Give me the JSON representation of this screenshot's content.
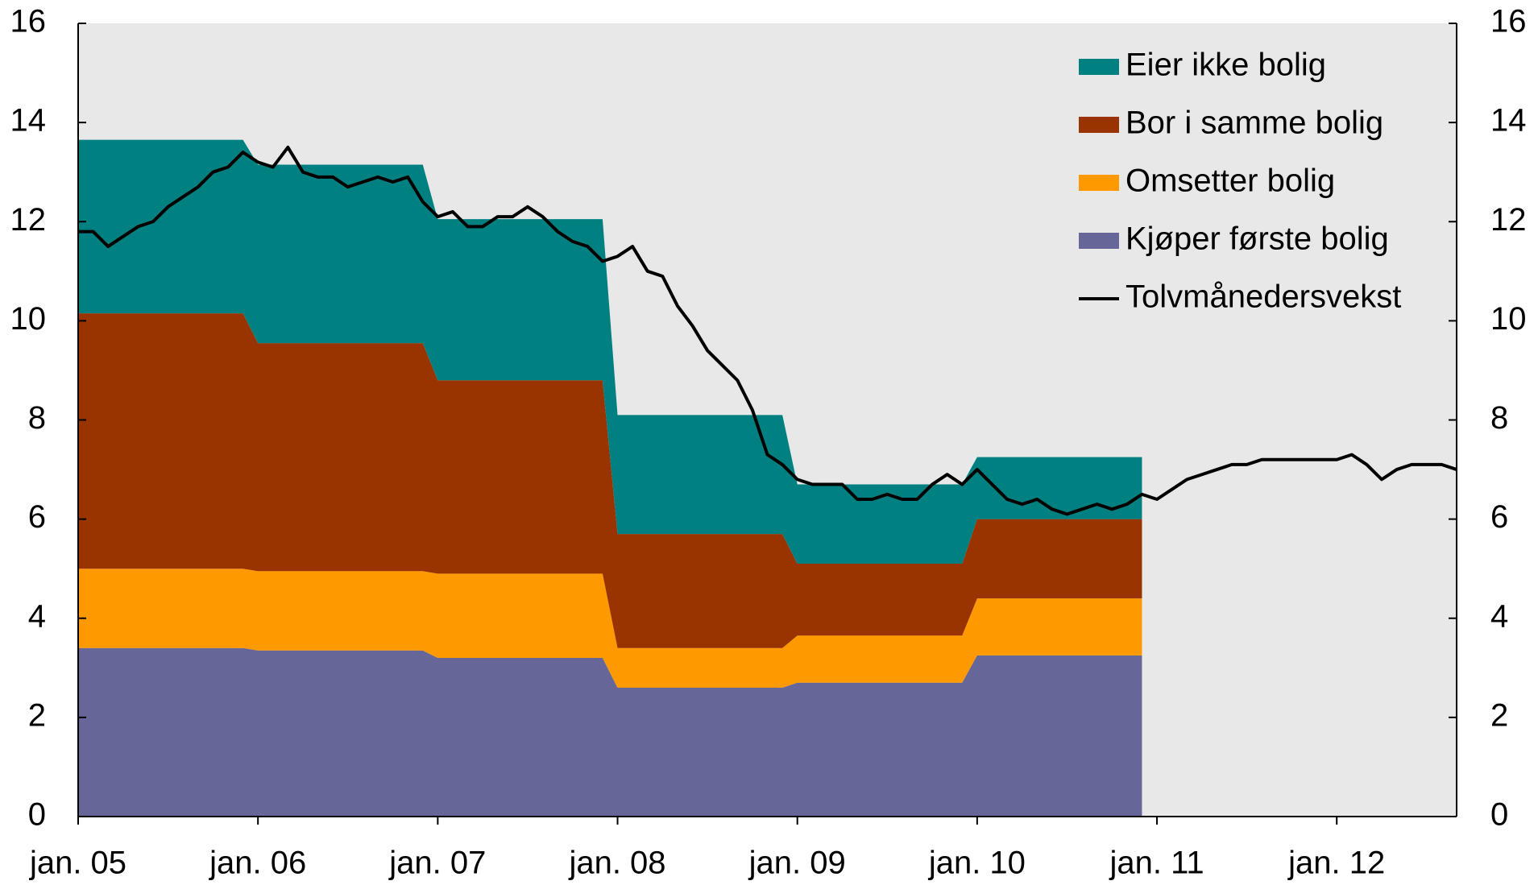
{
  "chart_data": {
    "type": "area",
    "categories": [
      "jan. 05",
      null,
      null,
      null,
      null,
      null,
      null,
      null,
      null,
      null,
      null,
      null,
      "jan. 06",
      null,
      null,
      null,
      null,
      null,
      null,
      null,
      null,
      null,
      null,
      null,
      "jan. 07",
      null,
      null,
      null,
      null,
      null,
      null,
      null,
      null,
      null,
      null,
      null,
      "jan. 08",
      null,
      null,
      null,
      null,
      null,
      null,
      null,
      null,
      null,
      null,
      null,
      "jan. 09",
      null,
      null,
      null,
      null,
      null,
      null,
      null,
      null,
      null,
      null,
      null,
      "jan. 10",
      null,
      null,
      null,
      null,
      null,
      null,
      null,
      null,
      null,
      null,
      null,
      "jan. 11",
      null,
      null,
      null,
      null,
      null,
      null,
      null,
      null,
      null,
      null,
      null,
      "jan. 12",
      null,
      null,
      null,
      null,
      null,
      null,
      null,
      null
    ],
    "series": [
      {
        "name": "Kjøper første bolig",
        "color": "#666699",
        "type": "area",
        "values": [
          3.4,
          3.4,
          3.4,
          3.4,
          3.4,
          3.4,
          3.4,
          3.4,
          3.4,
          3.4,
          3.4,
          3.4,
          3.35,
          3.35,
          3.35,
          3.35,
          3.35,
          3.35,
          3.35,
          3.35,
          3.35,
          3.35,
          3.35,
          3.35,
          3.2,
          3.2,
          3.2,
          3.2,
          3.2,
          3.2,
          3.2,
          3.2,
          3.2,
          3.2,
          3.2,
          3.2,
          2.6,
          2.6,
          2.6,
          2.6,
          2.6,
          2.6,
          2.6,
          2.6,
          2.6,
          2.6,
          2.6,
          2.6,
          2.7,
          2.7,
          2.7,
          2.7,
          2.7,
          2.7,
          2.7,
          2.7,
          2.7,
          2.7,
          2.7,
          2.7,
          3.25,
          3.25,
          3.25,
          3.25,
          3.25,
          3.25,
          3.25,
          3.25,
          3.25,
          3.25,
          3.25,
          3.25,
          null,
          null,
          null,
          null,
          null,
          null,
          null,
          null,
          null,
          null,
          null,
          null,
          null,
          null,
          null,
          null,
          null,
          null,
          null,
          null,
          null
        ]
      },
      {
        "name": "Omsetter bolig",
        "color": "#ff9900",
        "type": "area",
        "values": [
          1.6,
          1.6,
          1.6,
          1.6,
          1.6,
          1.6,
          1.6,
          1.6,
          1.6,
          1.6,
          1.6,
          1.6,
          1.6,
          1.6,
          1.6,
          1.6,
          1.6,
          1.6,
          1.6,
          1.6,
          1.6,
          1.6,
          1.6,
          1.6,
          1.7,
          1.7,
          1.7,
          1.7,
          1.7,
          1.7,
          1.7,
          1.7,
          1.7,
          1.7,
          1.7,
          1.7,
          0.8,
          0.8,
          0.8,
          0.8,
          0.8,
          0.8,
          0.8,
          0.8,
          0.8,
          0.8,
          0.8,
          0.8,
          0.95,
          0.95,
          0.95,
          0.95,
          0.95,
          0.95,
          0.95,
          0.95,
          0.95,
          0.95,
          0.95,
          0.95,
          1.15,
          1.15,
          1.15,
          1.15,
          1.15,
          1.15,
          1.15,
          1.15,
          1.15,
          1.15,
          1.15,
          1.15,
          null,
          null,
          null,
          null,
          null,
          null,
          null,
          null,
          null,
          null,
          null,
          null,
          null,
          null,
          null,
          null,
          null,
          null,
          null,
          null,
          null
        ]
      },
      {
        "name": "Bor i samme bolig",
        "color": "#993300",
        "type": "area",
        "values": [
          5.15,
          5.15,
          5.15,
          5.15,
          5.15,
          5.15,
          5.15,
          5.15,
          5.15,
          5.15,
          5.15,
          5.15,
          4.6,
          4.6,
          4.6,
          4.6,
          4.6,
          4.6,
          4.6,
          4.6,
          4.6,
          4.6,
          4.6,
          4.6,
          3.9,
          3.9,
          3.9,
          3.9,
          3.9,
          3.9,
          3.9,
          3.9,
          3.9,
          3.9,
          3.9,
          3.9,
          2.3,
          2.3,
          2.3,
          2.3,
          2.3,
          2.3,
          2.3,
          2.3,
          2.3,
          2.3,
          2.3,
          2.3,
          1.45,
          1.45,
          1.45,
          1.45,
          1.45,
          1.45,
          1.45,
          1.45,
          1.45,
          1.45,
          1.45,
          1.45,
          1.6,
          1.6,
          1.6,
          1.6,
          1.6,
          1.6,
          1.6,
          1.6,
          1.6,
          1.6,
          1.6,
          1.6,
          null,
          null,
          null,
          null,
          null,
          null,
          null,
          null,
          null,
          null,
          null,
          null,
          null,
          null,
          null,
          null,
          null,
          null,
          null,
          null,
          null
        ]
      },
      {
        "name": "Eier ikke bolig",
        "color": "#008080",
        "type": "area",
        "values": [
          3.5,
          3.5,
          3.5,
          3.5,
          3.5,
          3.5,
          3.5,
          3.5,
          3.5,
          3.5,
          3.5,
          3.5,
          3.6,
          3.6,
          3.6,
          3.6,
          3.6,
          3.6,
          3.6,
          3.6,
          3.6,
          3.6,
          3.6,
          3.6,
          3.25,
          3.25,
          3.25,
          3.25,
          3.25,
          3.25,
          3.25,
          3.25,
          3.25,
          3.25,
          3.25,
          3.25,
          2.4,
          2.4,
          2.4,
          2.4,
          2.4,
          2.4,
          2.4,
          2.4,
          2.4,
          2.4,
          2.4,
          2.4,
          1.6,
          1.6,
          1.6,
          1.6,
          1.6,
          1.6,
          1.6,
          1.6,
          1.6,
          1.6,
          1.6,
          1.6,
          1.25,
          1.25,
          1.25,
          1.25,
          1.25,
          1.25,
          1.25,
          1.25,
          1.25,
          1.25,
          1.25,
          1.25,
          null,
          null,
          null,
          null,
          null,
          null,
          null,
          null,
          null,
          null,
          null,
          null,
          null,
          null,
          null,
          null,
          null,
          null,
          null,
          null,
          null
        ]
      },
      {
        "name": "Tolvmånedersvekst",
        "color": "#000000",
        "type": "line",
        "axis": "y2",
        "values": [
          11.8,
          11.8,
          11.5,
          11.7,
          11.9,
          12.0,
          12.3,
          12.5,
          12.7,
          13.0,
          13.1,
          13.4,
          13.2,
          13.1,
          13.5,
          13.0,
          12.9,
          12.9,
          12.7,
          12.8,
          12.9,
          12.8,
          12.9,
          12.4,
          12.1,
          12.2,
          11.9,
          11.9,
          12.1,
          12.1,
          12.3,
          12.1,
          11.8,
          11.6,
          11.5,
          11.2,
          11.3,
          11.5,
          11.0,
          10.9,
          10.3,
          9.9,
          9.4,
          9.1,
          8.8,
          8.2,
          7.3,
          7.1,
          6.8,
          6.7,
          6.7,
          6.7,
          6.4,
          6.4,
          6.5,
          6.4,
          6.4,
          6.7,
          6.9,
          6.7,
          7.0,
          6.7,
          6.4,
          6.3,
          6.4,
          6.2,
          6.1,
          6.2,
          6.3,
          6.2,
          6.3,
          6.5,
          6.4,
          6.6,
          6.8,
          6.9,
          7.0,
          7.1,
          7.1,
          7.2,
          7.2,
          7.2,
          7.2,
          7.2,
          7.2,
          7.3,
          7.1,
          6.8,
          7.0,
          7.1,
          7.1,
          7.1,
          7.0
        ]
      }
    ],
    "ylim": [
      0,
      16
    ],
    "yticks": [
      0,
      2,
      4,
      6,
      8,
      10,
      12,
      14,
      16
    ],
    "y2lim": [
      0,
      16
    ],
    "y2ticks": [
      0,
      2,
      4,
      6,
      8,
      10,
      12,
      14,
      16
    ],
    "legend": "upper right"
  }
}
